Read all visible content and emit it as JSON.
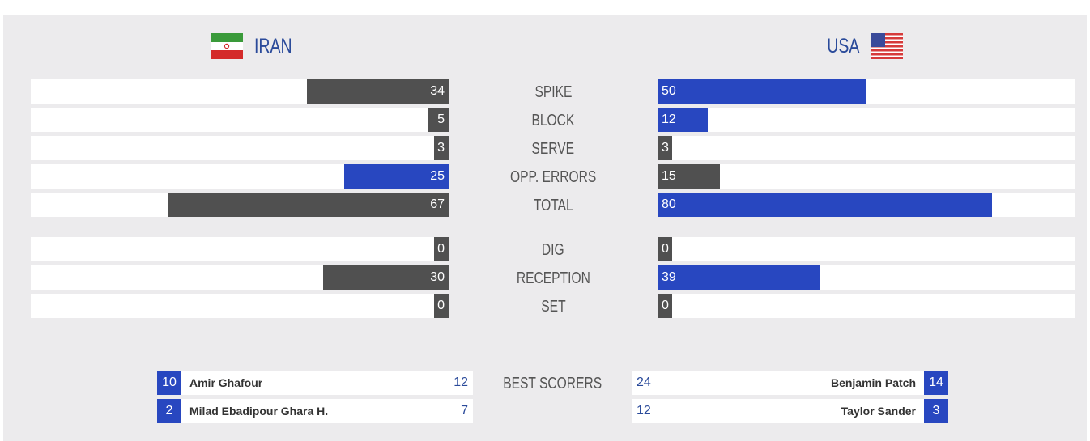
{
  "teams": {
    "home": {
      "name": "IRAN",
      "flag": "iran-flag"
    },
    "away": {
      "name": "USA",
      "flag": "usa-flag"
    }
  },
  "colors": {
    "gray": "#505050",
    "blue": "#2847c0",
    "track": "#ffffff",
    "panel": "#ecebed",
    "accent_text": "#2a4a9a"
  },
  "stats": [
    {
      "label": "SPIKE",
      "home": "34",
      "away": "50",
      "home_level": 0.34,
      "away_level": 0.5,
      "home_color": "gray",
      "away_color": "blue"
    },
    {
      "label": "BLOCK",
      "home": "5",
      "away": "12",
      "home_level": 0.05,
      "away_level": 0.12,
      "home_color": "gray",
      "away_color": "blue"
    },
    {
      "label": "SERVE",
      "home": "3",
      "away": "3",
      "home_level": 0.03,
      "away_level": 0.03,
      "home_color": "gray",
      "away_color": "gray"
    },
    {
      "label": "OPP. ERRORS",
      "home": "25",
      "away": "15",
      "home_level": 0.25,
      "away_level": 0.15,
      "home_color": "blue",
      "away_color": "gray"
    },
    {
      "label": "TOTAL",
      "home": "67",
      "away": "80",
      "home_level": 0.67,
      "away_level": 0.8,
      "home_color": "gray",
      "away_color": "blue"
    },
    {
      "label": "DIG",
      "home": "0",
      "away": "0",
      "home_level": 0.0,
      "away_level": 0.0,
      "home_color": "gray",
      "away_color": "gray"
    },
    {
      "label": "RECEPTION",
      "home": "30",
      "away": "39",
      "home_level": 0.3,
      "away_level": 0.39,
      "home_color": "gray",
      "away_color": "blue"
    },
    {
      "label": "SET",
      "home": "0",
      "away": "0",
      "home_level": 0.0,
      "away_level": 0.0,
      "home_color": "gray",
      "away_color": "gray"
    }
  ],
  "best_scorers": {
    "label": "BEST SCORERS",
    "home": [
      {
        "number": "10",
        "name": "Amir Ghafour",
        "points": "12"
      },
      {
        "number": "2",
        "name": "Milad Ebadipour Ghara H.",
        "points": "7"
      }
    ],
    "away": [
      {
        "number": "14",
        "name": "Benjamin Patch",
        "points": "24"
      },
      {
        "number": "3",
        "name": "Taylor Sander",
        "points": "12"
      }
    ]
  }
}
